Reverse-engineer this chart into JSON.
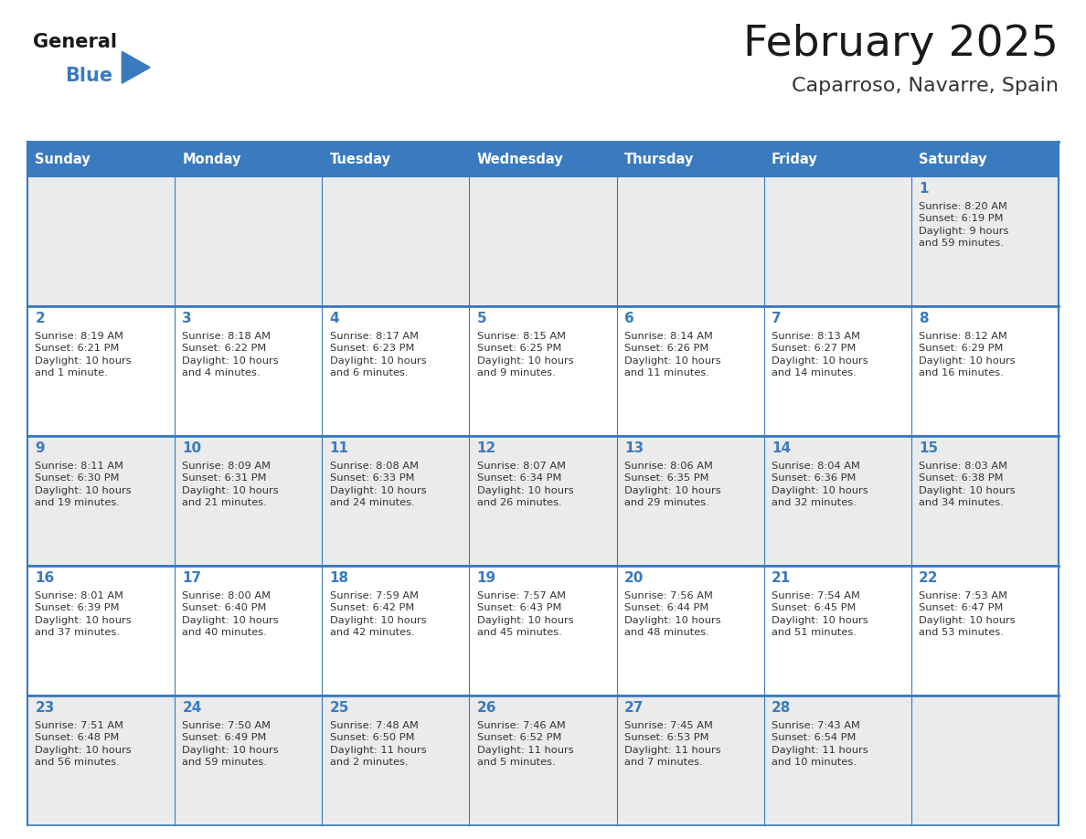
{
  "title": "February 2025",
  "subtitle": "Caparroso, Navarre, Spain",
  "header_color": "#3a7abf",
  "header_text_color": "#ffffff",
  "cell_bg_even": "#ebebeb",
  "cell_bg_odd": "#ffffff",
  "border_color": "#3a7abf",
  "title_color": "#1a1a1a",
  "subtitle_color": "#333333",
  "day_num_color": "#3a7abf",
  "cell_text_color": "#333333",
  "days_of_week": [
    "Sunday",
    "Monday",
    "Tuesday",
    "Wednesday",
    "Thursday",
    "Friday",
    "Saturday"
  ],
  "logo_general_color": "#1a1a1a",
  "logo_blue_color": "#3a7abf",
  "weeks": [
    [
      {
        "day": null,
        "text": ""
      },
      {
        "day": null,
        "text": ""
      },
      {
        "day": null,
        "text": ""
      },
      {
        "day": null,
        "text": ""
      },
      {
        "day": null,
        "text": ""
      },
      {
        "day": null,
        "text": ""
      },
      {
        "day": 1,
        "text": "Sunrise: 8:20 AM\nSunset: 6:19 PM\nDaylight: 9 hours\nand 59 minutes."
      }
    ],
    [
      {
        "day": 2,
        "text": "Sunrise: 8:19 AM\nSunset: 6:21 PM\nDaylight: 10 hours\nand 1 minute."
      },
      {
        "day": 3,
        "text": "Sunrise: 8:18 AM\nSunset: 6:22 PM\nDaylight: 10 hours\nand 4 minutes."
      },
      {
        "day": 4,
        "text": "Sunrise: 8:17 AM\nSunset: 6:23 PM\nDaylight: 10 hours\nand 6 minutes."
      },
      {
        "day": 5,
        "text": "Sunrise: 8:15 AM\nSunset: 6:25 PM\nDaylight: 10 hours\nand 9 minutes."
      },
      {
        "day": 6,
        "text": "Sunrise: 8:14 AM\nSunset: 6:26 PM\nDaylight: 10 hours\nand 11 minutes."
      },
      {
        "day": 7,
        "text": "Sunrise: 8:13 AM\nSunset: 6:27 PM\nDaylight: 10 hours\nand 14 minutes."
      },
      {
        "day": 8,
        "text": "Sunrise: 8:12 AM\nSunset: 6:29 PM\nDaylight: 10 hours\nand 16 minutes."
      }
    ],
    [
      {
        "day": 9,
        "text": "Sunrise: 8:11 AM\nSunset: 6:30 PM\nDaylight: 10 hours\nand 19 minutes."
      },
      {
        "day": 10,
        "text": "Sunrise: 8:09 AM\nSunset: 6:31 PM\nDaylight: 10 hours\nand 21 minutes."
      },
      {
        "day": 11,
        "text": "Sunrise: 8:08 AM\nSunset: 6:33 PM\nDaylight: 10 hours\nand 24 minutes."
      },
      {
        "day": 12,
        "text": "Sunrise: 8:07 AM\nSunset: 6:34 PM\nDaylight: 10 hours\nand 26 minutes."
      },
      {
        "day": 13,
        "text": "Sunrise: 8:06 AM\nSunset: 6:35 PM\nDaylight: 10 hours\nand 29 minutes."
      },
      {
        "day": 14,
        "text": "Sunrise: 8:04 AM\nSunset: 6:36 PM\nDaylight: 10 hours\nand 32 minutes."
      },
      {
        "day": 15,
        "text": "Sunrise: 8:03 AM\nSunset: 6:38 PM\nDaylight: 10 hours\nand 34 minutes."
      }
    ],
    [
      {
        "day": 16,
        "text": "Sunrise: 8:01 AM\nSunset: 6:39 PM\nDaylight: 10 hours\nand 37 minutes."
      },
      {
        "day": 17,
        "text": "Sunrise: 8:00 AM\nSunset: 6:40 PM\nDaylight: 10 hours\nand 40 minutes."
      },
      {
        "day": 18,
        "text": "Sunrise: 7:59 AM\nSunset: 6:42 PM\nDaylight: 10 hours\nand 42 minutes."
      },
      {
        "day": 19,
        "text": "Sunrise: 7:57 AM\nSunset: 6:43 PM\nDaylight: 10 hours\nand 45 minutes."
      },
      {
        "day": 20,
        "text": "Sunrise: 7:56 AM\nSunset: 6:44 PM\nDaylight: 10 hours\nand 48 minutes."
      },
      {
        "day": 21,
        "text": "Sunrise: 7:54 AM\nSunset: 6:45 PM\nDaylight: 10 hours\nand 51 minutes."
      },
      {
        "day": 22,
        "text": "Sunrise: 7:53 AM\nSunset: 6:47 PM\nDaylight: 10 hours\nand 53 minutes."
      }
    ],
    [
      {
        "day": 23,
        "text": "Sunrise: 7:51 AM\nSunset: 6:48 PM\nDaylight: 10 hours\nand 56 minutes."
      },
      {
        "day": 24,
        "text": "Sunrise: 7:50 AM\nSunset: 6:49 PM\nDaylight: 10 hours\nand 59 minutes."
      },
      {
        "day": 25,
        "text": "Sunrise: 7:48 AM\nSunset: 6:50 PM\nDaylight: 11 hours\nand 2 minutes."
      },
      {
        "day": 26,
        "text": "Sunrise: 7:46 AM\nSunset: 6:52 PM\nDaylight: 11 hours\nand 5 minutes."
      },
      {
        "day": 27,
        "text": "Sunrise: 7:45 AM\nSunset: 6:53 PM\nDaylight: 11 hours\nand 7 minutes."
      },
      {
        "day": 28,
        "text": "Sunrise: 7:43 AM\nSunset: 6:54 PM\nDaylight: 11 hours\nand 10 minutes."
      },
      {
        "day": null,
        "text": ""
      }
    ]
  ],
  "fig_width": 11.88,
  "fig_height": 9.18,
  "fig_dpi": 100
}
